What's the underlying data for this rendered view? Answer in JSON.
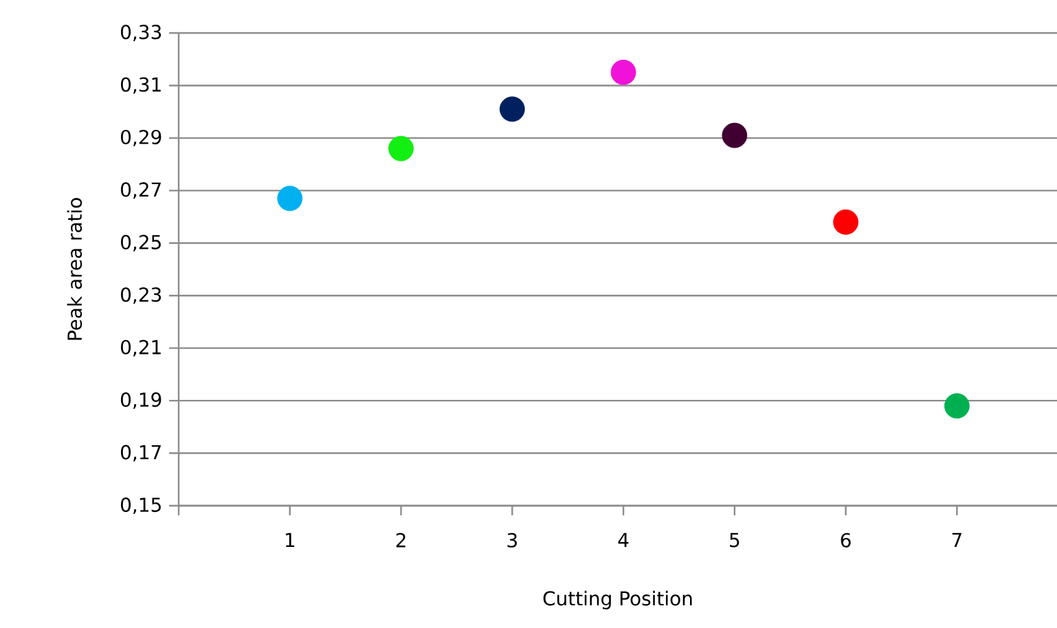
{
  "chart_data": {
    "type": "scatter",
    "xlabel": "Cutting Position",
    "ylabel": "Peak area ratio",
    "x": [
      1,
      2,
      3,
      4,
      5,
      6,
      7
    ],
    "values": [
      0.267,
      0.286,
      0.301,
      0.315,
      0.291,
      0.258,
      0.188
    ],
    "colors": [
      "#00b0f0",
      "#12ef12",
      "#002060",
      "#f012d8",
      "#400030",
      "#ff0000",
      "#00b050"
    ],
    "xlim": [
      0,
      7.9
    ],
    "xticks": [
      {
        "value": 0,
        "label": null
      },
      1,
      2,
      3,
      4,
      5,
      6,
      7
    ],
    "ylim": [
      0.15,
      0.33
    ],
    "yticks": [
      {
        "value": 0.15,
        "label": "0,15"
      },
      {
        "value": 0.17,
        "label": "0,17"
      },
      {
        "value": 0.19,
        "label": "0,19"
      },
      {
        "value": 0.21,
        "label": "0,21"
      },
      {
        "value": 0.23,
        "label": "0,23"
      },
      {
        "value": 0.25,
        "label": "0,25"
      },
      {
        "value": 0.27,
        "label": "0,27"
      },
      {
        "value": 0.29,
        "label": "0,29"
      },
      {
        "value": 0.31,
        "label": "0,31"
      },
      {
        "value": 0.33,
        "label": "0,33"
      }
    ],
    "grid": "y"
  }
}
